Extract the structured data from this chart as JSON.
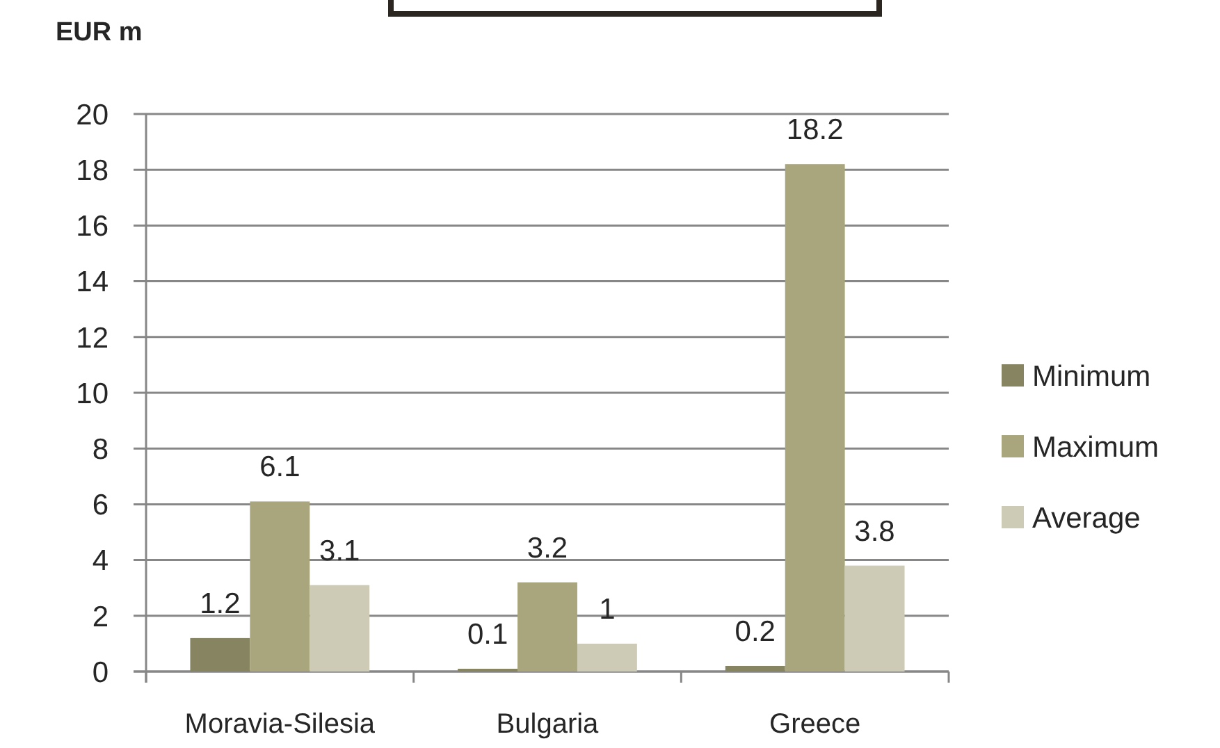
{
  "chart_data": {
    "type": "bar",
    "ylabel": "EUR m",
    "categories": [
      "Moravia-Silesia",
      "Bulgaria",
      "Greece"
    ],
    "series": [
      {
        "name": "Minimum",
        "color": "#878461",
        "values": [
          1.2,
          0.1,
          0.2
        ]
      },
      {
        "name": "Maximum",
        "color": "#a9a57c",
        "values": [
          6.1,
          3.2,
          18.2
        ]
      },
      {
        "name": "Average",
        "color": "#cdcab6",
        "values": [
          3.1,
          1,
          3.8
        ]
      }
    ],
    "ylim": [
      0,
      20
    ],
    "yticks": [
      0,
      2,
      4,
      6,
      8,
      10,
      12,
      14,
      16,
      18,
      20
    ],
    "grid": "y",
    "legend": "right",
    "data_labels": true
  }
}
